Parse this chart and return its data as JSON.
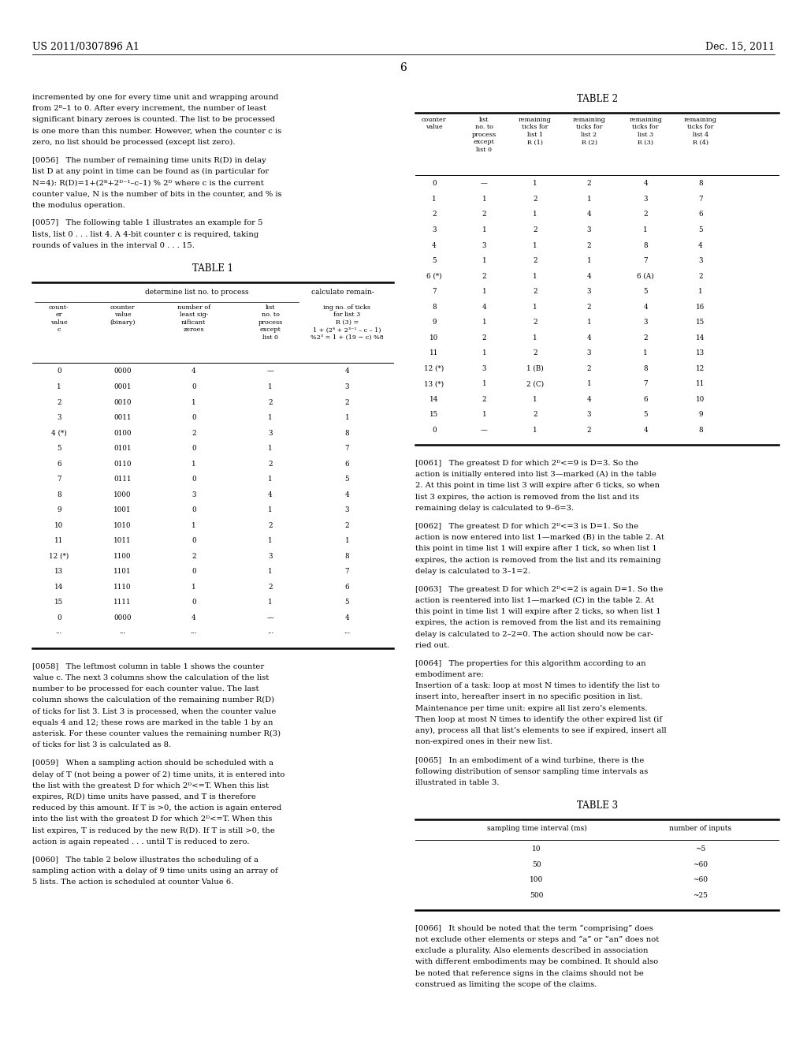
{
  "header_left": "US 2011/0307896 A1",
  "header_right": "Dec. 15, 2011",
  "page_number": "6",
  "left_texts": [
    "incremented by one for every time unit and wrapping around",
    "from 2ᴿ–1 to 0. After every increment, the number of least",
    "significant binary zeroes is counted. The list to be processed",
    "is one more than this number. However, when the counter c is",
    "zero, no list should be processed (except list zero).",
    "",
    "[0056]   The number of remaining time units R(D) in delay",
    "list D at any point in time can be found as (in particular for",
    "N=4): R(D)=1+(2ᴿ+2ᴰ⁻¹–c–1) % 2ᴰ where c is the current",
    "counter value, N is the number of bits in the counter, and % is",
    "the modulus operation.",
    "",
    "[0057]   The following table 1 illustrates an example for 5",
    "lists, list 0 . . . list 4. A 4-bit counter c is required, taking",
    "rounds of values in the interval 0 . . . 15."
  ],
  "below_t1_texts": [
    "[0058]   The leftmost column in table 1 shows the counter",
    "value c. The next 3 columns show the calculation of the list",
    "number to be processed for each counter value. The last",
    "column shows the calculation of the remaining number R(D)",
    "of ticks for list 3. List 3 is processed, when the counter value",
    "equals 4 and 12; these rows are marked in the table 1 by an",
    "asterisk. For these counter values the remaining number R(3)",
    "of ticks for list 3 is calculated as 8.",
    "",
    "[0059]   When a sampling action should be scheduled with a",
    "delay of T (not being a power of 2) time units, it is entered into",
    "the list with the greatest D for which 2ᴰ<=T. When this list",
    "expires, R(D) time units have passed, and T is therefore",
    "reduced by this amount. If T is >0, the action is again entered",
    "into the list with the greatest D for which 2ᴰ<=T. When this",
    "list expires, T is reduced by the new R(D). If T is still >0, the",
    "action is again repeated . . . until T is reduced to zero.",
    "",
    "[0060]   The table 2 below illustrates the scheduling of a",
    "sampling action with a delay of 9 time units using an array of",
    "5 lists. The action is scheduled at counter Value 6."
  ],
  "right_top_texts": [
    "[0061]   The greatest D for which 2ᴰ<=9 is D=3. So the",
    "action is initially entered into list 3—marked (A) in the table",
    "2. At this point in time list 3 will expire after 6 ticks, so when",
    "list 3 expires, the action is removed from the list and its",
    "remaining delay is calculated to 9–6=3.",
    "",
    "[0062]   The greatest D for which 2ᴰ<=3 is D=1. So the",
    "action is now entered into list 1—marked (B) in the table 2. At",
    "this point in time list 1 will expire after 1 tick, so when list 1",
    "expires, the action is removed from the list and its remaining",
    "delay is calculated to 3–1=2.",
    "",
    "[0063]   The greatest D for which 2ᴰ<=2 is again D=1. So the",
    "action is reentered into list 1—marked (C) in the table 2. At",
    "this point in time list 1 will expire after 2 ticks, so when list 1",
    "expires, the action is removed from the list and its remaining",
    "delay is calculated to 2–2=0. The action should now be car-",
    "ried out.",
    "",
    "[0064]   The properties for this algorithm according to an",
    "embodiment are:",
    "Insertion of a task: loop at most N times to identify the list to",
    "insert into, hereafter insert in no specific position in list.",
    "Maintenance per time unit: expire all list zero’s elements.",
    "Then loop at most N times to identify the other expired list (if",
    "any), process all that list’s elements to see if expired, insert all",
    "non-expired ones in their new list.",
    "",
    "[0065]   In an embodiment of a wind turbine, there is the",
    "following distribution of sensor sampling time intervals as",
    "illustrated in table 3."
  ],
  "right_bottom_texts": [
    "[0066]   It should be noted that the term “comprising” does",
    "not exclude other elements or steps and “a” or “an” does not",
    "exclude a plurality. Also elements described in association",
    "with different embodiments may be combined. It should also",
    "be noted that reference signs in the claims should not be",
    "construed as limiting the scope of the claims."
  ]
}
